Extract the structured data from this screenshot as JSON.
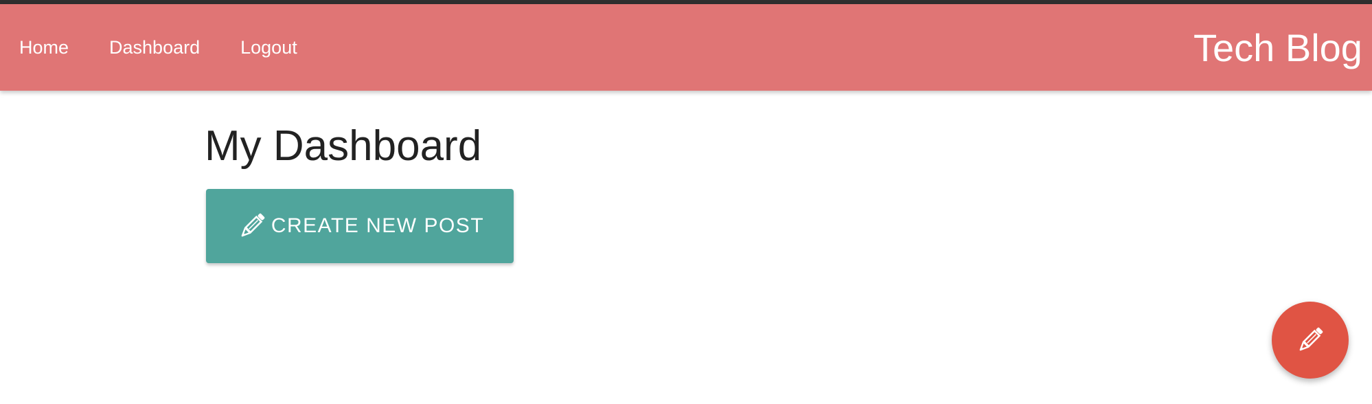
{
  "nav": {
    "links": [
      {
        "label": "Home"
      },
      {
        "label": "Dashboard"
      },
      {
        "label": "Logout"
      }
    ],
    "brand": "Tech Blog"
  },
  "main": {
    "title": "My Dashboard",
    "create_button": {
      "label": "Create new post",
      "icon": "pencil-icon"
    }
  },
  "fab": {
    "icon": "pencil-icon"
  },
  "colors": {
    "navbar": "#e07575",
    "create_button": "#50a59c",
    "fab": "#e05444",
    "title_text": "#222222"
  }
}
